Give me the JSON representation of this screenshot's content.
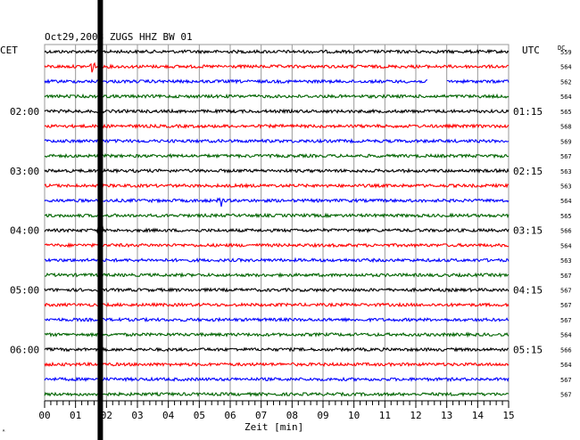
{
  "chart_data": {
    "type": "line",
    "title": "Oct29,2008  ZUGS HHZ BW 01",
    "left_axis_title": "CET",
    "right_axis_title": "UTC",
    "dc_title": "DC",
    "xlabel": "Zeit [min]",
    "xlim": [
      0,
      15
    ],
    "x_ticks": [
      "00",
      "01",
      "02",
      "03",
      "04",
      "05",
      "06",
      "07",
      "08",
      "09",
      "10",
      "11",
      "12",
      "13",
      "14",
      "15"
    ],
    "grid": true,
    "trace_colors": [
      "#000000",
      "#ff0000",
      "#0000ff",
      "#006400"
    ],
    "num_traces": 24,
    "dc_values": [
      559,
      564,
      562,
      564,
      565,
      568,
      569,
      567,
      563,
      563,
      564,
      565,
      566,
      564,
      563,
      567,
      567,
      567,
      567,
      564,
      566,
      564,
      567,
      567
    ],
    "left_time_labels": [
      {
        "trace": 4,
        "label": "02:00"
      },
      {
        "trace": 8,
        "label": "03:00"
      },
      {
        "trace": 12,
        "label": "04:00"
      },
      {
        "trace": 16,
        "label": "05:00"
      },
      {
        "trace": 20,
        "label": "06:00"
      }
    ],
    "right_time_labels": [
      {
        "trace": 4,
        "label": "01:15"
      },
      {
        "trace": 8,
        "label": "02:15"
      },
      {
        "trace": 12,
        "label": "03:15"
      },
      {
        "trace": 16,
        "label": "04:15"
      },
      {
        "trace": 20,
        "label": "05:15"
      }
    ],
    "events": [
      {
        "trace": 1,
        "minute": 1.55,
        "amplitude": 7
      },
      {
        "trace": 10,
        "minute": 5.7,
        "amplitude": 6
      },
      {
        "trace": 12,
        "minute": 1.8,
        "amplitude": 8
      }
    ],
    "data_gaps": [
      {
        "trace": 2,
        "from_minute": 12.4,
        "to_minute": 13.0
      }
    ],
    "saturated_minute": 1.8,
    "corner_mark": "ᴬ"
  }
}
